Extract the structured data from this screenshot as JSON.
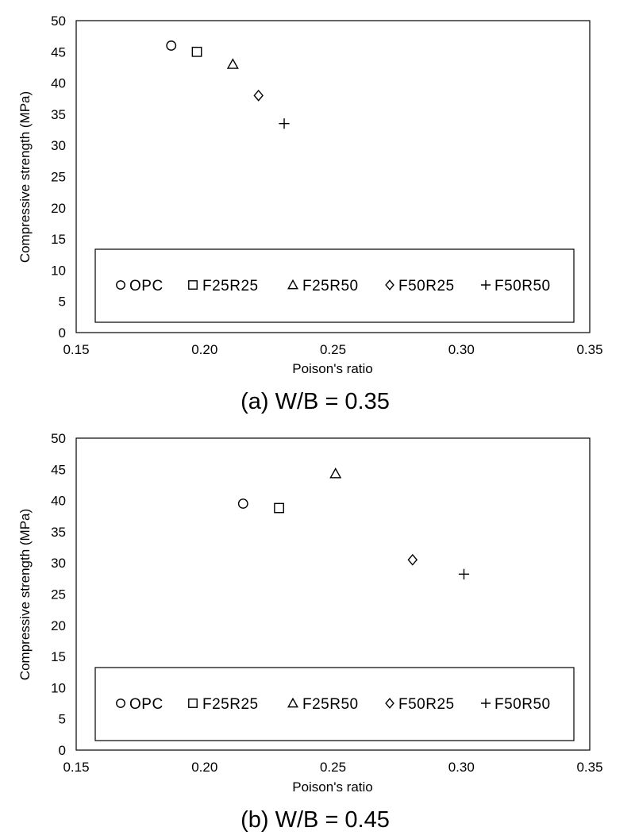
{
  "chart_data": [
    {
      "type": "scatter",
      "caption": "(a)  W/B  =  0.35",
      "xlabel": "Poison's ratio",
      "ylabel": "Compressive strength (MPa)",
      "xlim": [
        0.15,
        0.35
      ],
      "ylim": [
        0,
        50
      ],
      "x_ticks": [
        "0.15",
        "0.20",
        "0.25",
        "0.30",
        "0.35"
      ],
      "y_ticks": [
        "0",
        "5",
        "10",
        "15",
        "20",
        "25",
        "30",
        "35",
        "40",
        "45",
        "50"
      ],
      "grid": false,
      "legend_position": "bottom-inside",
      "series": [
        {
          "name": "OPC",
          "marker": "circle",
          "x": [
            0.187
          ],
          "y": [
            46.0
          ]
        },
        {
          "name": "F25R25",
          "marker": "square",
          "x": [
            0.197
          ],
          "y": [
            45.0
          ]
        },
        {
          "name": "F25R50",
          "marker": "triangle",
          "x": [
            0.211
          ],
          "y": [
            43.0
          ]
        },
        {
          "name": "F50R25",
          "marker": "diamond",
          "x": [
            0.221
          ],
          "y": [
            38.0
          ]
        },
        {
          "name": "F50R50",
          "marker": "plus",
          "x": [
            0.231
          ],
          "y": [
            33.5
          ]
        }
      ]
    },
    {
      "type": "scatter",
      "caption": "(b)  W/B  =  0.45",
      "xlabel": "Poison's ratio",
      "ylabel": "Compressive strength (MPa)",
      "xlim": [
        0.15,
        0.35
      ],
      "ylim": [
        0,
        50
      ],
      "x_ticks": [
        "0.15",
        "0.20",
        "0.25",
        "0.30",
        "0.35"
      ],
      "y_ticks": [
        "0",
        "5",
        "10",
        "15",
        "20",
        "25",
        "30",
        "35",
        "40",
        "45",
        "50"
      ],
      "grid": false,
      "legend_position": "bottom-inside",
      "series": [
        {
          "name": "OPC",
          "marker": "circle",
          "x": [
            0.215
          ],
          "y": [
            39.5
          ]
        },
        {
          "name": "F25R25",
          "marker": "square",
          "x": [
            0.229
          ],
          "y": [
            38.8
          ]
        },
        {
          "name": "F25R50",
          "marker": "triangle",
          "x": [
            0.251
          ],
          "y": [
            44.3
          ]
        },
        {
          "name": "F50R25",
          "marker": "diamond",
          "x": [
            0.281
          ],
          "y": [
            30.5
          ]
        },
        {
          "name": "F50R50",
          "marker": "plus",
          "x": [
            0.301
          ],
          "y": [
            28.2
          ]
        }
      ]
    }
  ]
}
